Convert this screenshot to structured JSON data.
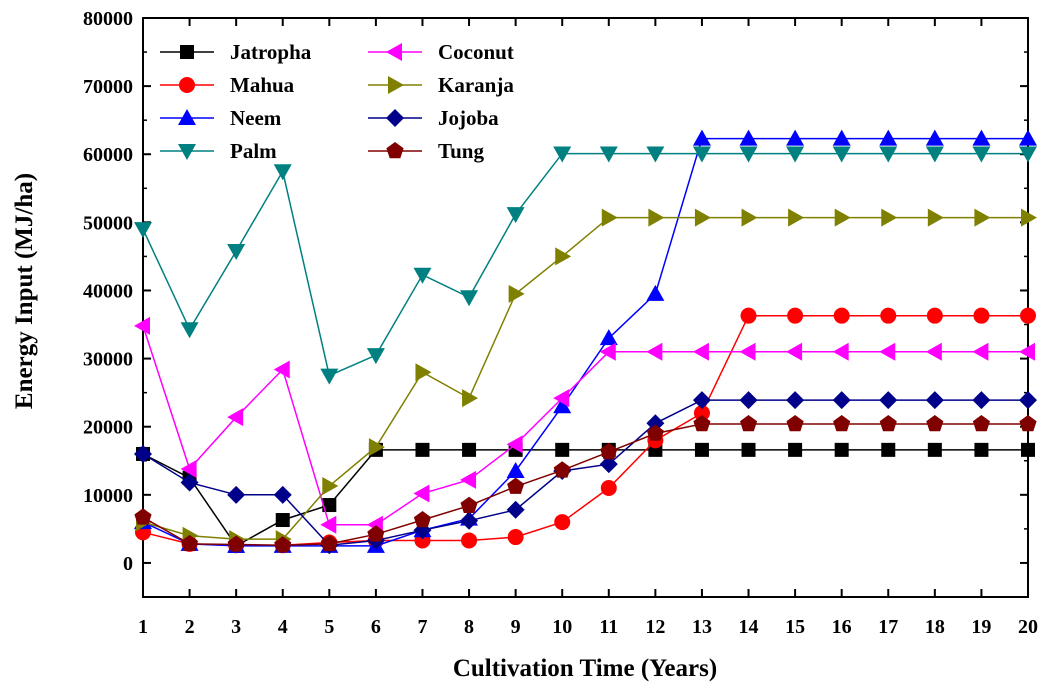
{
  "chart_data": {
    "type": "line",
    "xlabel": "Cultivation Time (Years)",
    "ylabel": "Energy Input (MJ/ha)",
    "xlim": [
      1,
      20
    ],
    "ylim": [
      -5000,
      80000
    ],
    "x": [
      1,
      2,
      3,
      4,
      5,
      6,
      7,
      8,
      9,
      10,
      11,
      12,
      13,
      14,
      15,
      16,
      17,
      18,
      19,
      20
    ],
    "x_ticks": [
      "1",
      "2",
      "3",
      "4",
      "5",
      "6",
      "7",
      "8",
      "9",
      "10",
      "11",
      "12",
      "13",
      "14",
      "15",
      "16",
      "17",
      "18",
      "19",
      "20"
    ],
    "y_ticks": [
      0,
      10000,
      20000,
      30000,
      40000,
      50000,
      60000,
      70000,
      80000
    ],
    "y_tick_labels": [
      "0",
      "10000",
      "20000",
      "30000",
      "40000",
      "50000",
      "60000",
      "70000",
      "80000"
    ],
    "grid": false,
    "legend_position": "top-left",
    "series": [
      {
        "name": "Jatropha",
        "color": "#000000",
        "marker": "square",
        "values": [
          16000,
          12500,
          2500,
          6300,
          8500,
          16600,
          16600,
          16600,
          16600,
          16600,
          16600,
          16600,
          16600,
          16600,
          16600,
          16600,
          16600,
          16600,
          16600,
          16600
        ]
      },
      {
        "name": "Mahua",
        "color": "#ff0000",
        "marker": "circle",
        "values": [
          4500,
          2800,
          2600,
          2600,
          3000,
          3300,
          3300,
          3300,
          3800,
          6000,
          11000,
          18000,
          22000,
          36300,
          36300,
          36300,
          36300,
          36300,
          36300,
          36300
        ]
      },
      {
        "name": "Neem",
        "color": "#0000ff",
        "marker": "triangle-up",
        "values": [
          6000,
          2800,
          2500,
          2500,
          2500,
          2500,
          4800,
          6500,
          13500,
          23000,
          33000,
          39500,
          62300,
          62300,
          62300,
          62300,
          62300,
          62300,
          62300,
          62300
        ]
      },
      {
        "name": "Palm",
        "color": "#008080",
        "marker": "triangle-down",
        "values": [
          49000,
          34300,
          45800,
          57500,
          27500,
          30500,
          42300,
          39000,
          51200,
          60100,
          60100,
          60100,
          60100,
          60100,
          60100,
          60100,
          60100,
          60100,
          60100,
          60100
        ]
      },
      {
        "name": "Coconut",
        "color": "#ff00ff",
        "marker": "triangle-left",
        "values": [
          34800,
          13800,
          21400,
          28400,
          5600,
          5600,
          10200,
          12200,
          17400,
          24200,
          31000,
          31000,
          31000,
          31000,
          31000,
          31000,
          31000,
          31000,
          31000,
          31000
        ]
      },
      {
        "name": "Karanja",
        "color": "#808000",
        "marker": "triangle-right",
        "values": [
          6000,
          4000,
          3500,
          3500,
          11300,
          17000,
          28000,
          24200,
          39500,
          45000,
          50700,
          50700,
          50700,
          50700,
          50700,
          50700,
          50700,
          50700,
          50700,
          50700
        ]
      },
      {
        "name": "Jojoba",
        "color": "#00008b",
        "marker": "diamond",
        "values": [
          16000,
          11800,
          10000,
          10000,
          2600,
          3300,
          4800,
          6200,
          7800,
          13500,
          14500,
          20500,
          23900,
          23900,
          23900,
          23900,
          23900,
          23900,
          23900,
          23900
        ]
      },
      {
        "name": "Tung",
        "color": "#800000",
        "marker": "pentagon",
        "values": [
          6700,
          2800,
          2700,
          2600,
          2800,
          4200,
          6300,
          8400,
          11200,
          13600,
          16300,
          19000,
          20400,
          20400,
          20400,
          20400,
          20400,
          20400,
          20400,
          20400
        ]
      }
    ]
  }
}
